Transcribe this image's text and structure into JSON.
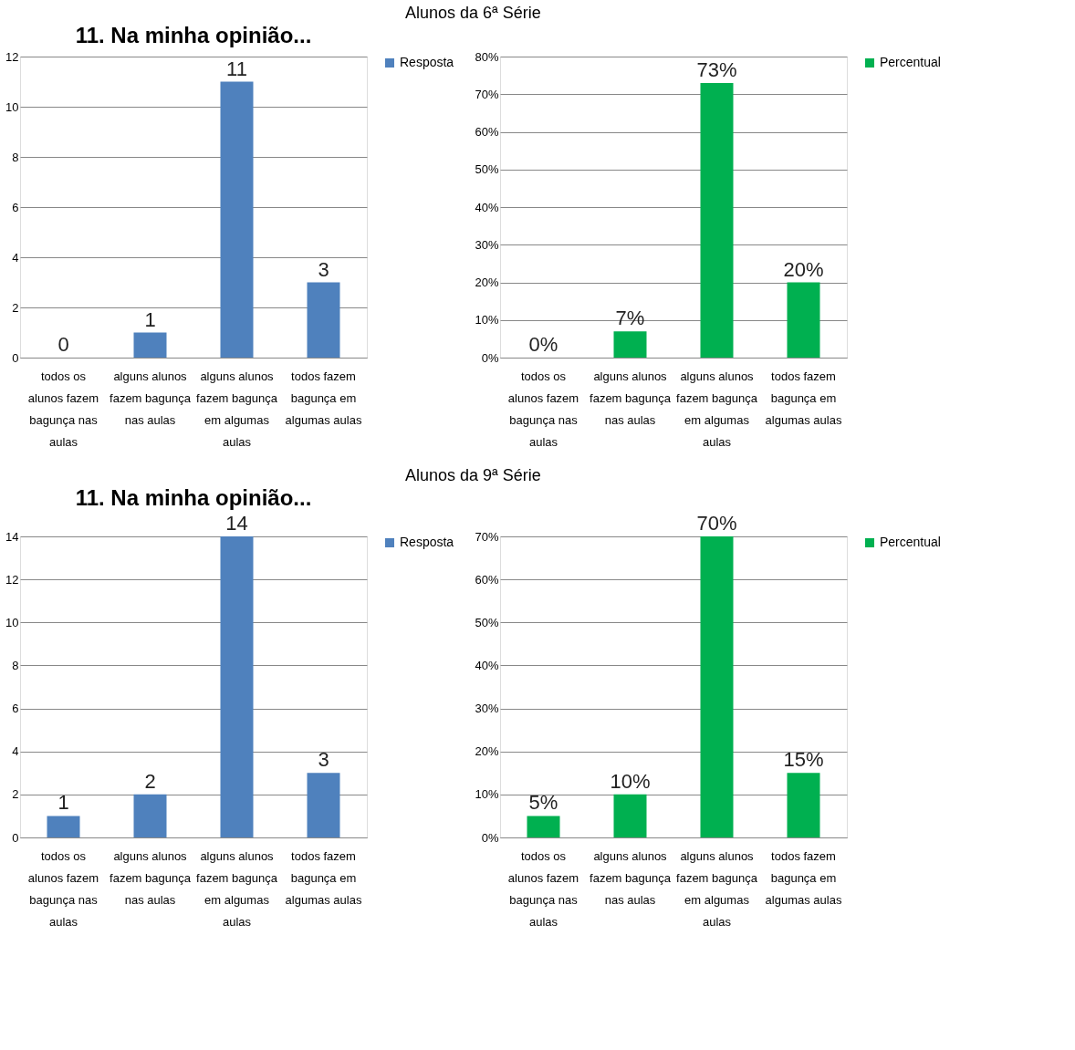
{
  "chart_data": [
    {
      "type": "bar",
      "title": "11. Na minha opinião...",
      "annotations": [
        "Alunos da 6ª Série"
      ],
      "categories": [
        "todos os alunos fazem bagunça nas aulas",
        "alguns alunos fazem bagunça nas aulas",
        "alguns alunos fazem bagunça em algumas aulas",
        "todos fazem bagunça em algumas aulas"
      ],
      "series": [
        {
          "name": "Resposta",
          "color": "#4f81bd",
          "values": [
            0,
            1,
            11,
            3
          ]
        }
      ],
      "ylim": [
        0,
        12
      ],
      "yticks": [
        0,
        2,
        4,
        6,
        8,
        10,
        12
      ],
      "grid": "y",
      "legend": "right",
      "data_labels": true
    },
    {
      "type": "bar",
      "categories": [
        "todos os alunos fazem bagunça nas aulas",
        "alguns alunos fazem bagunça nas aulas",
        "alguns alunos fazem bagunça em algumas aulas",
        "todos fazem bagunça em algumas aulas"
      ],
      "series": [
        {
          "name": "Percentual",
          "color": "#00b050",
          "values": [
            0,
            7,
            73,
            20
          ]
        }
      ],
      "value_labels": [
        "0%",
        "7%",
        "73%",
        "20%"
      ],
      "ylim": [
        0,
        80
      ],
      "yticks": [
        {
          "value": 0,
          "label": "0%"
        },
        {
          "value": 10,
          "label": "10%"
        },
        {
          "value": 20,
          "label": "20%"
        },
        {
          "value": 30,
          "label": "30%"
        },
        {
          "value": 40,
          "label": "40%"
        },
        {
          "value": 50,
          "label": "50%"
        },
        {
          "value": 60,
          "label": "60%"
        },
        {
          "value": 70,
          "label": "70%"
        },
        {
          "value": 80,
          "label": "80%"
        }
      ],
      "grid": "y",
      "legend": "right"
    },
    {
      "type": "bar",
      "title": "11. Na minha opinião...",
      "annotations": [
        "Alunos da 9ª Série"
      ],
      "categories": [
        "todos os alunos fazem bagunça nas aulas",
        "alguns alunos fazem bagunça nas aulas",
        "alguns alunos fazem bagunça em algumas aulas",
        "todos fazem bagunça em algumas aulas"
      ],
      "series": [
        {
          "name": "Resposta",
          "color": "#4f81bd",
          "values": [
            1,
            2,
            14,
            3
          ]
        }
      ],
      "ylim": [
        0,
        14
      ],
      "yticks": [
        0,
        2,
        4,
        6,
        8,
        10,
        12,
        14
      ],
      "grid": "y",
      "legend": "right",
      "data_labels": true
    },
    {
      "type": "bar",
      "categories": [
        "todos os alunos fazem bagunça nas aulas",
        "alguns alunos fazem bagunça nas aulas",
        "alguns alunos fazem bagunça em algumas aulas",
        "todos fazem bagunça em algumas aulas"
      ],
      "series": [
        {
          "name": "Percentual",
          "color": "#00b050",
          "values": [
            5,
            10,
            70,
            15
          ]
        }
      ],
      "value_labels": [
        "5%",
        "10%",
        "70%",
        "15%"
      ],
      "ylim": [
        0,
        70
      ],
      "yticks": [
        {
          "value": 0,
          "label": "0%"
        },
        {
          "value": 10,
          "label": "10%"
        },
        {
          "value": 20,
          "label": "20%"
        },
        {
          "value": 30,
          "label": "30%"
        },
        {
          "value": 40,
          "label": "40%"
        },
        {
          "value": 50,
          "label": "50%"
        },
        {
          "value": 60,
          "label": "60%"
        },
        {
          "value": 70,
          "label": "70%"
        }
      ],
      "grid": "y",
      "legend": "right"
    }
  ]
}
